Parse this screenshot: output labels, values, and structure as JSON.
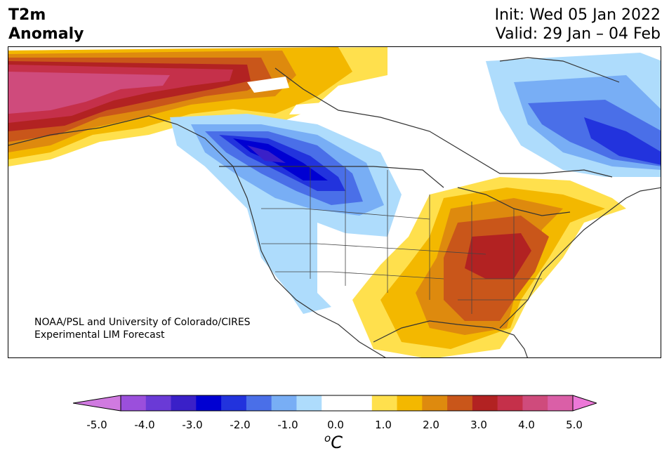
{
  "title": {
    "line1": "T2m",
    "line2": "Anomaly"
  },
  "forecast": {
    "init": "Init: Wed 05 Jan 2022",
    "valid": "Valid: 29 Jan – 04 Feb"
  },
  "credit": {
    "line1": "NOAA/PSL and University of Colorado/CIRES",
    "line2": "Experimental LIM Forecast"
  },
  "colorbar": {
    "unit_base": "C",
    "unit_sup": "o",
    "ticks": [
      "-5.0",
      "-4.0",
      "-3.0",
      "-2.0",
      "-1.0",
      "0.0",
      "1.0",
      "2.0",
      "3.0",
      "4.0",
      "5.0"
    ],
    "colors": [
      "#9b4fdc",
      "#6a3ad6",
      "#3a20c8",
      "#0000d2",
      "#2233dd",
      "#4a6fe8",
      "#78aef5",
      "#aedcfc",
      "#ffffff",
      "#ffffff",
      "#ffe04d",
      "#f3b800",
      "#de8a0e",
      "#c9561a",
      "#b22222",
      "#c5304a",
      "#cf4b7c",
      "#da5fa7"
    ],
    "under_color": "#d07ae0",
    "over_color": "#ec78d8"
  }
}
